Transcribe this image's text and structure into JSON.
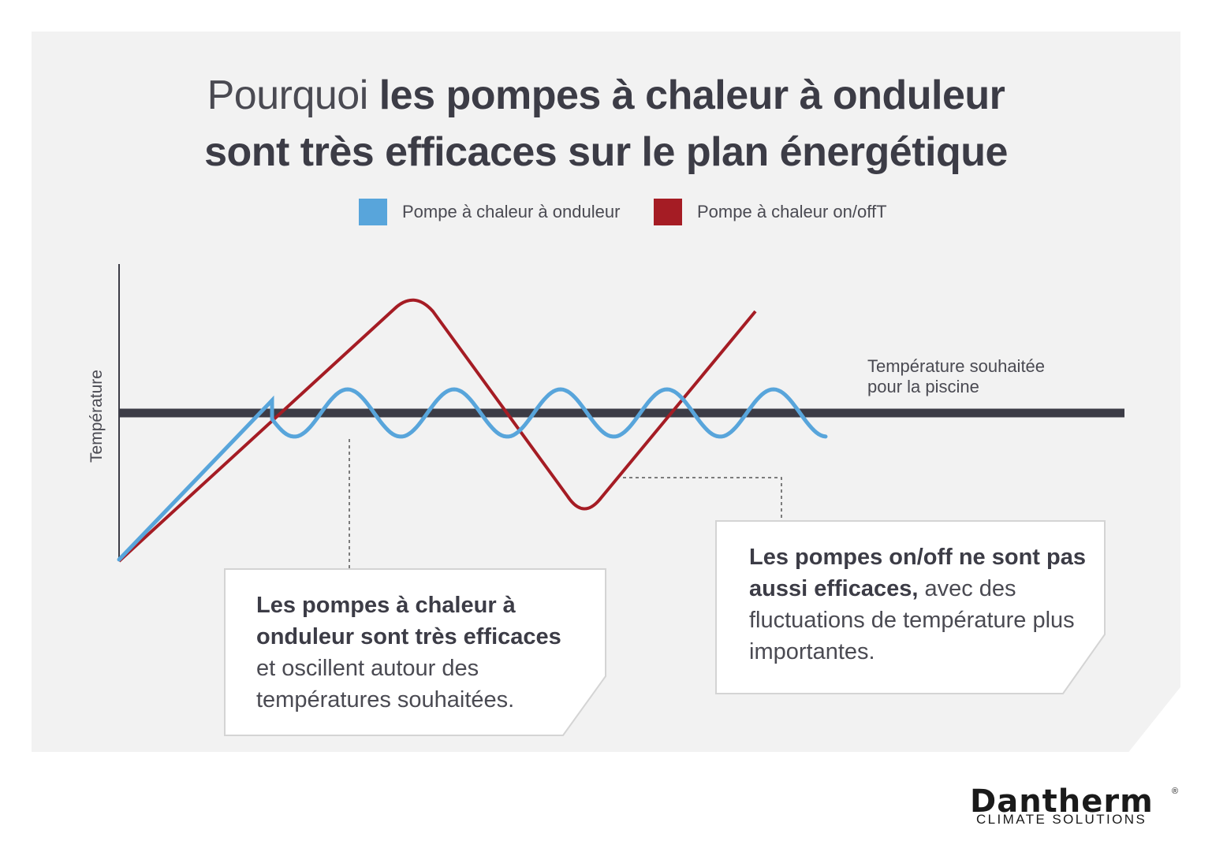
{
  "title": {
    "light": "Pourquoi ",
    "bold_line1": "les pompes à chaleur à onduleur",
    "bold_line2": "sont très efficaces sur le plan énergétique"
  },
  "legend": [
    {
      "label": "Pompe à chaleur à onduleur",
      "color": "#58a5db"
    },
    {
      "label": "Pompe à chaleur on/offT",
      "color": "#a51c24"
    }
  ],
  "axis": {
    "ylabel": "Température"
  },
  "target_line": {
    "label_line1": "Température souhaitée",
    "label_line2": "pour la piscine",
    "color": "#3c3c46"
  },
  "callouts": {
    "inverter": {
      "bold": "Les pompes à chaleur à onduleur sont très efficaces",
      "text": "et oscillent autour des températures souhaitées."
    },
    "onoff": {
      "bold": "Les pompes on/off ne sont pas aussi efficaces,",
      "text": "avec des fluctuations de température plus importantes."
    }
  },
  "logo": {
    "name": "Dantherm",
    "reg": "®",
    "tagline": "CLIMATE SOLUTIONS"
  }
}
